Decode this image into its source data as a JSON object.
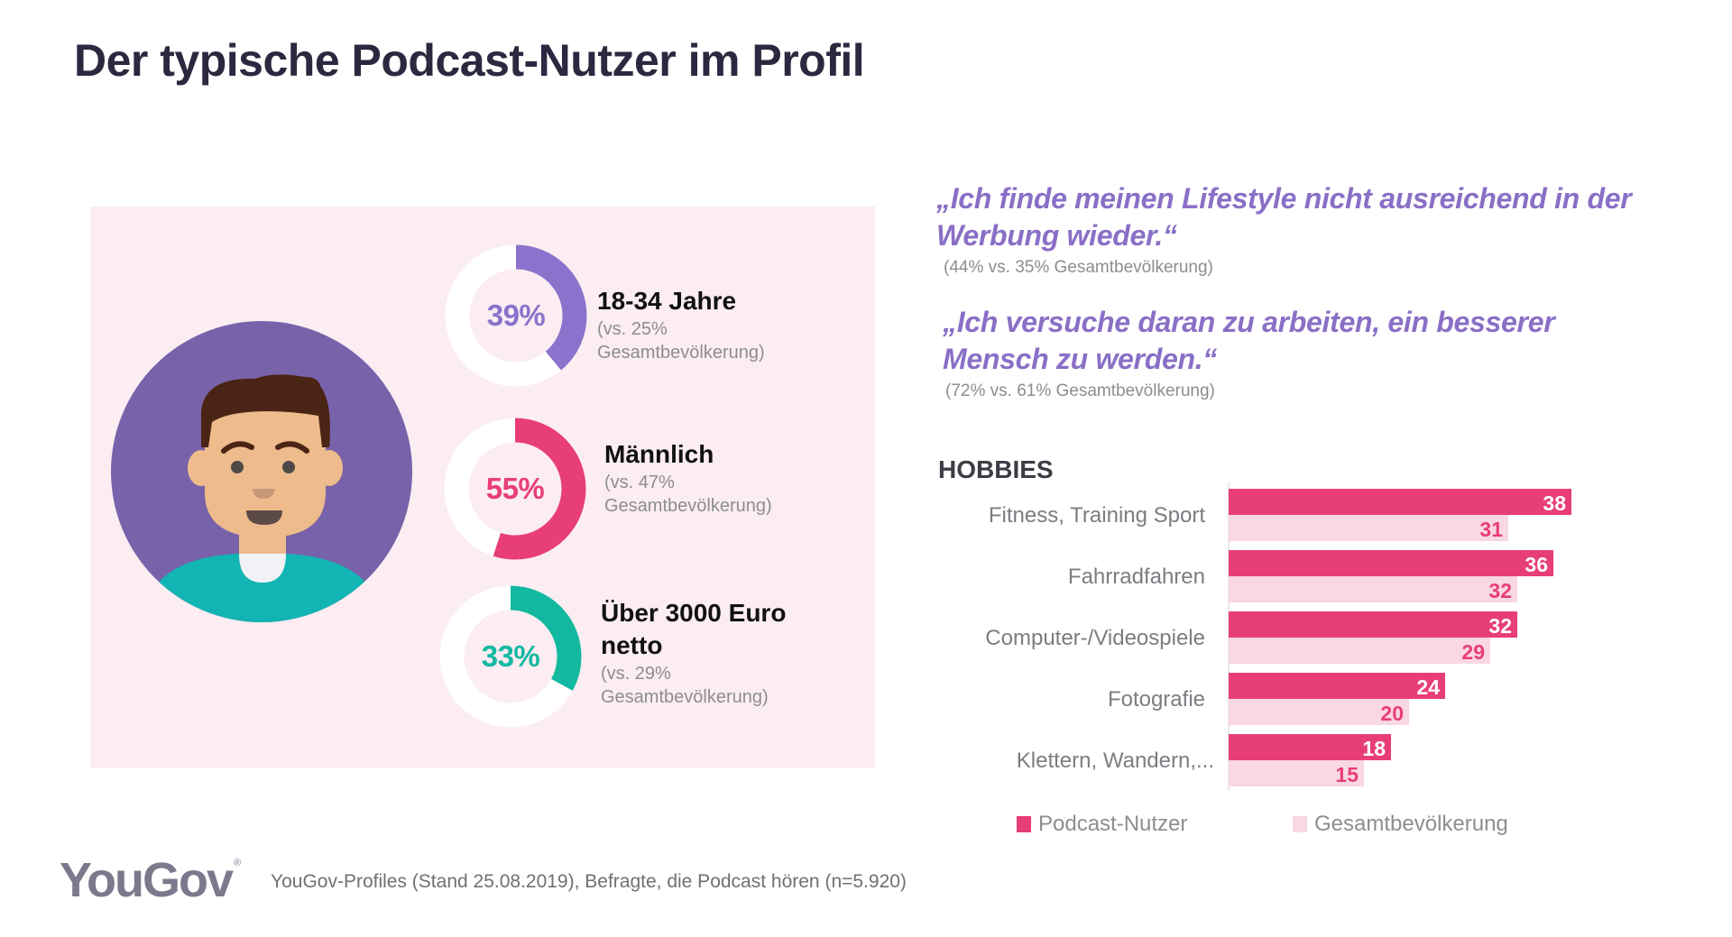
{
  "title": "Der typische Podcast-Nutzer im Profil",
  "colors": {
    "purple": "#8c72cc",
    "pink": "#e83e77",
    "teal": "#12b9a0",
    "light_pink": "#f9d7e3",
    "panel_bg": "#fbedf2",
    "avatar_bg": "#7862aa",
    "quote": "#8a6fc6"
  },
  "profile": {
    "stats": [
      {
        "percent": 39,
        "percent_label": "39%",
        "heading": [
          "18-34 Jahre"
        ],
        "sub": [
          "(vs. 25%",
          "Gesamtbevölkerung)"
        ],
        "color": "#8c72cc"
      },
      {
        "percent": 55,
        "percent_label": "55%",
        "heading": [
          "Männlich"
        ],
        "sub": [
          "(vs. 47%",
          "Gesamtbevölkerung)"
        ],
        "color": "#e83e77"
      },
      {
        "percent": 33,
        "percent_label": "33%",
        "heading": [
          "Über 3000 Euro",
          "netto"
        ],
        "sub": [
          "(vs. 29%",
          "Gesamtbevölkerung)"
        ],
        "color": "#12b9a0"
      }
    ]
  },
  "quotes": [
    {
      "lines": [
        "„Ich finde meinen Lifestyle nicht ausreichend in der",
        "Werbung wieder.“"
      ],
      "sub": "(44% vs. 35% Gesamtbevölkerung)"
    },
    {
      "lines": [
        "„Ich versuche daran zu arbeiten, ein besserer",
        "Mensch zu werden.“"
      ],
      "sub": "(72% vs. 61% Gesamtbevölkerung)"
    }
  ],
  "hobbies_title": "HOBBIES",
  "chart_data": {
    "type": "bar",
    "orientation": "horizontal",
    "title": "HOBBIES",
    "categories": [
      "Fitness, Training Sport",
      "Fahrradfahren",
      "Computer-/Videospiele",
      "Fotografie",
      "Klettern, Wandern,..."
    ],
    "series": [
      {
        "name": "Podcast-Nutzer",
        "values": [
          38,
          36,
          32,
          24,
          18
        ],
        "color": "#e83e77"
      },
      {
        "name": "Gesamtbevölkerung",
        "values": [
          31,
          32,
          29,
          20,
          15
        ],
        "color": "#f9d7e3"
      }
    ],
    "xlim": [
      0,
      40
    ],
    "grid": false,
    "legend": "bottom"
  },
  "legend": [
    {
      "label": "Podcast-Nutzer",
      "color": "#e83e77"
    },
    {
      "label": "Gesamtbevölkerung",
      "color": "#f9d7e3"
    }
  ],
  "footer": {
    "logo": "YouGov",
    "registered": "®",
    "source": "YouGov-Profiles (Stand 25.08.2019), Befragte, die Podcast hören (n=5.920)"
  }
}
